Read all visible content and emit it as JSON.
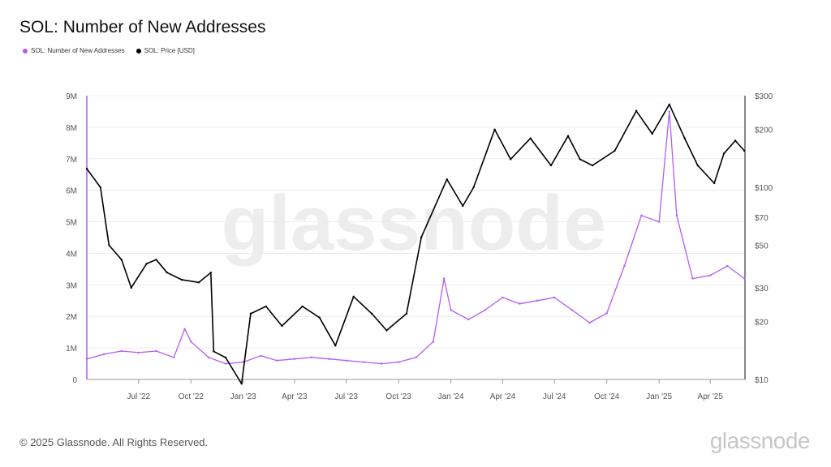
{
  "title": "SOL: Number of New Addresses",
  "legend": [
    {
      "label": "SOL: Number of New Addresses",
      "color": "#b35cf0"
    },
    {
      "label": "SOL: Price [USD]",
      "color": "#000000"
    }
  ],
  "watermark": "glassnode",
  "footer": "© 2025 Glassnode. All Rights Reserved.",
  "brand": "glassnode",
  "chart_data": {
    "type": "line",
    "title": "SOL: Number of New Addresses",
    "xlabel": "",
    "ylabel": "",
    "x_ticks": [
      "Jul '22",
      "Oct '22",
      "Jan '23",
      "Apr '23",
      "Jul '23",
      "Oct '23",
      "Jan '24",
      "Apr '24",
      "Jul '24",
      "Oct '24",
      "Jan '25",
      "Apr '25"
    ],
    "y_left_ticks": [
      "0",
      "1M",
      "2M",
      "3M",
      "4M",
      "5M",
      "6M",
      "7M",
      "8M",
      "9M"
    ],
    "y_right_ticks": [
      "$10",
      "$20",
      "$30",
      "$50",
      "$70",
      "$100",
      "$200",
      "$300"
    ],
    "y_left_range": [
      0,
      9000000
    ],
    "y_right_range": [
      10,
      300
    ],
    "y_right_scale": "log",
    "x_range": [
      "2022-04-01",
      "2025-06-01"
    ],
    "series": [
      {
        "name": "SOL: Number of New Addresses",
        "axis": "left",
        "color": "#b35cf0",
        "points": [
          [
            "2022-04-01",
            650000
          ],
          [
            "2022-05-01",
            800000
          ],
          [
            "2022-06-01",
            900000
          ],
          [
            "2022-07-01",
            850000
          ],
          [
            "2022-08-01",
            900000
          ],
          [
            "2022-09-01",
            700000
          ],
          [
            "2022-09-20",
            1600000
          ],
          [
            "2022-10-01",
            1200000
          ],
          [
            "2022-11-01",
            700000
          ],
          [
            "2022-12-01",
            500000
          ],
          [
            "2023-01-01",
            550000
          ],
          [
            "2023-02-01",
            750000
          ],
          [
            "2023-03-01",
            600000
          ],
          [
            "2023-04-01",
            650000
          ],
          [
            "2023-05-01",
            700000
          ],
          [
            "2023-06-01",
            650000
          ],
          [
            "2023-07-01",
            600000
          ],
          [
            "2023-08-01",
            550000
          ],
          [
            "2023-09-01",
            500000
          ],
          [
            "2023-10-01",
            550000
          ],
          [
            "2023-11-01",
            700000
          ],
          [
            "2023-12-01",
            1200000
          ],
          [
            "2023-12-20",
            3200000
          ],
          [
            "2024-01-01",
            2200000
          ],
          [
            "2024-02-01",
            1900000
          ],
          [
            "2024-03-01",
            2200000
          ],
          [
            "2024-04-01",
            2600000
          ],
          [
            "2024-05-01",
            2400000
          ],
          [
            "2024-06-01",
            2500000
          ],
          [
            "2024-07-01",
            2600000
          ],
          [
            "2024-08-01",
            2200000
          ],
          [
            "2024-09-01",
            1800000
          ],
          [
            "2024-10-01",
            2100000
          ],
          [
            "2024-11-01",
            3600000
          ],
          [
            "2024-12-01",
            5200000
          ],
          [
            "2025-01-01",
            5000000
          ],
          [
            "2025-01-19",
            8500000
          ],
          [
            "2025-02-01",
            5200000
          ],
          [
            "2025-03-01",
            3200000
          ],
          [
            "2025-04-01",
            3300000
          ],
          [
            "2025-05-01",
            3600000
          ],
          [
            "2025-05-31",
            3200000
          ]
        ]
      },
      {
        "name": "SOL: Price [USD]",
        "axis": "right",
        "color": "#000000",
        "points": [
          [
            "2022-04-01",
            125
          ],
          [
            "2022-04-25",
            100
          ],
          [
            "2022-05-10",
            50
          ],
          [
            "2022-06-01",
            42
          ],
          [
            "2022-06-18",
            30
          ],
          [
            "2022-07-15",
            40
          ],
          [
            "2022-08-01",
            42
          ],
          [
            "2022-08-20",
            36
          ],
          [
            "2022-09-15",
            33
          ],
          [
            "2022-10-15",
            32
          ],
          [
            "2022-11-05",
            36
          ],
          [
            "2022-11-10",
            14
          ],
          [
            "2022-12-01",
            13
          ],
          [
            "2022-12-29",
            9.5
          ],
          [
            "2023-01-14",
            22
          ],
          [
            "2023-02-10",
            24
          ],
          [
            "2023-03-10",
            19
          ],
          [
            "2023-04-15",
            24
          ],
          [
            "2023-05-15",
            21
          ],
          [
            "2023-06-12",
            15
          ],
          [
            "2023-07-14",
            27
          ],
          [
            "2023-08-15",
            22
          ],
          [
            "2023-09-10",
            18
          ],
          [
            "2023-10-15",
            22
          ],
          [
            "2023-11-10",
            55
          ],
          [
            "2023-12-25",
            110
          ],
          [
            "2024-01-22",
            80
          ],
          [
            "2024-02-10",
            100
          ],
          [
            "2024-03-18",
            200
          ],
          [
            "2024-04-15",
            140
          ],
          [
            "2024-05-20",
            180
          ],
          [
            "2024-06-25",
            130
          ],
          [
            "2024-07-25",
            185
          ],
          [
            "2024-08-15",
            140
          ],
          [
            "2024-09-06",
            130
          ],
          [
            "2024-10-15",
            155
          ],
          [
            "2024-11-22",
            250
          ],
          [
            "2024-12-20",
            190
          ],
          [
            "2025-01-19",
            270
          ],
          [
            "2025-02-15",
            180
          ],
          [
            "2025-03-10",
            130
          ],
          [
            "2025-04-08",
            105
          ],
          [
            "2025-04-25",
            150
          ],
          [
            "2025-05-15",
            175
          ],
          [
            "2025-05-31",
            155
          ]
        ]
      }
    ]
  }
}
